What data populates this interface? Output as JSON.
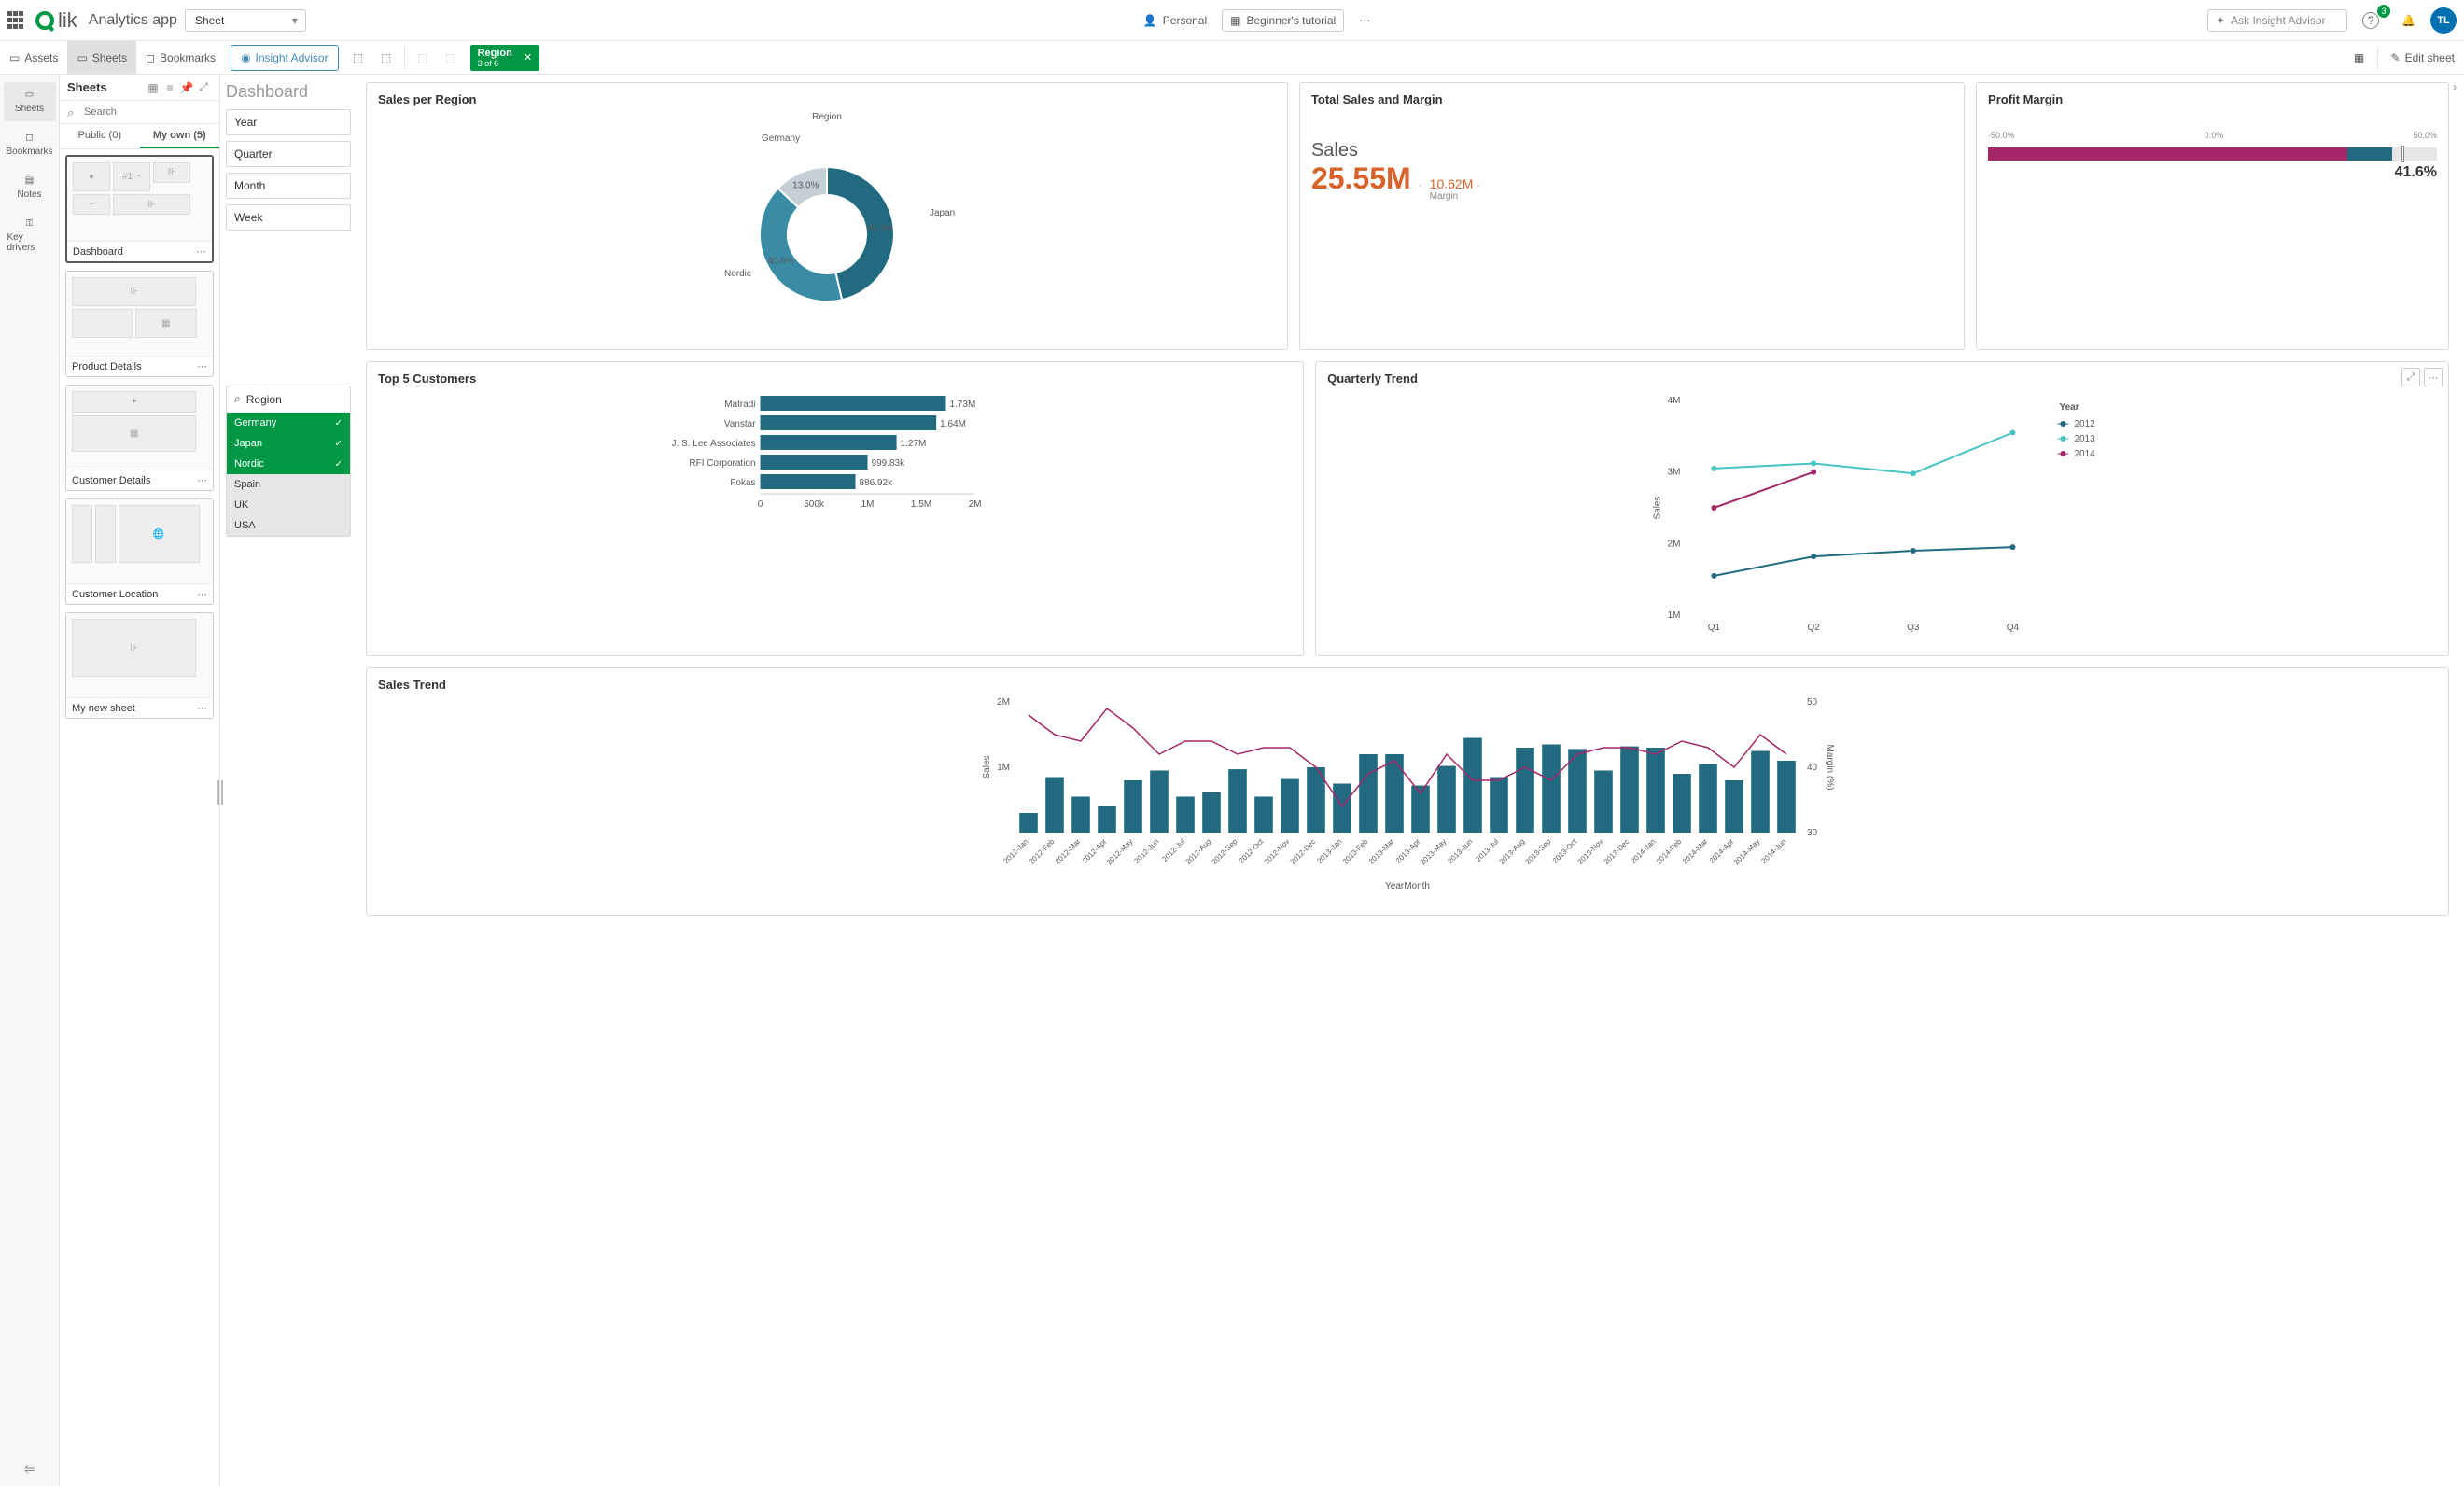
{
  "header": {
    "app_name": "Analytics app",
    "sheet_dropdown": "Sheet",
    "personal": "Personal",
    "tutorial": "Beginner's tutorial",
    "insight_placeholder": "Ask Insight Advisor",
    "help_badge": "3",
    "user_initials": "TL"
  },
  "toolbar": {
    "assets": "Assets",
    "sheets": "Sheets",
    "bookmarks": "Bookmarks",
    "insight": "Insight Advisor",
    "chip_label": "Region",
    "chip_sub": "3 of 6",
    "edit": "Edit sheet"
  },
  "rail": {
    "sheets": "Sheets",
    "bookmarks": "Bookmarks",
    "notes": "Notes",
    "drivers": "Key drivers"
  },
  "sheets_panel": {
    "title": "Sheets",
    "search_placeholder": "Search",
    "tab_public": "Public (0)",
    "tab_own": "My own (5)",
    "cards": [
      "Dashboard",
      "Product Details",
      "Customer Details",
      "Customer Location",
      "My new sheet"
    ]
  },
  "filters": {
    "page_title": "Dashboard",
    "year": "Year",
    "quarter": "Quarter",
    "month": "Month",
    "week": "Week",
    "region_label": "Region",
    "regions": [
      "Germany",
      "Japan",
      "Nordic",
      "Spain",
      "UK",
      "USA"
    ],
    "selected": [
      "Germany",
      "Japan",
      "Nordic"
    ]
  },
  "donut": {
    "title": "Sales per Region",
    "legend": "Region",
    "segments": [
      {
        "label": "Japan",
        "pct": 46.4,
        "color": "#226a80",
        "text_color": "#fff"
      },
      {
        "label": "Nordic",
        "pct": 40.6,
        "color": "#3a8ca6",
        "text_color": "#fff"
      },
      {
        "label": "Germany",
        "pct": 13.0,
        "color": "#c4cfd6",
        "text_color": "#595959"
      }
    ]
  },
  "kpi": {
    "title": "Total Sales and Margin",
    "label": "Sales",
    "value": "25.55M",
    "value_color": "#d9622b",
    "sub_value": "10.62M",
    "sub_label": "Margin",
    "sub_color": "#d9622b"
  },
  "bullet": {
    "title": "Profit Margin",
    "scale": [
      "-50.0%",
      "0.0%",
      "50.0%"
    ],
    "fill_color": "#a4276a",
    "fill_pct": 80,
    "tip_color": "#226a80",
    "tip_pct": 10,
    "marker_pct": 92,
    "marker_color": "#fff",
    "value": "41.6%"
  },
  "top5": {
    "title": "Top 5 Customers",
    "max": 2000000,
    "ticks": [
      "0",
      "500k",
      "1M",
      "1.5M",
      "2M"
    ],
    "color": "#226a80",
    "rows": [
      {
        "label": "Matradi",
        "value": 1730000,
        "text": "1.73M"
      },
      {
        "label": "Vanstar",
        "value": 1640000,
        "text": "1.64M"
      },
      {
        "label": "J. S. Lee Associates",
        "value": 1270000,
        "text": "1.27M"
      },
      {
        "label": "RFI Corporation",
        "value": 999830,
        "text": "999.83k"
      },
      {
        "label": "Fokas",
        "value": 886920,
        "text": "886.92k"
      }
    ]
  },
  "quarterly": {
    "title": "Quarterly Trend",
    "legend_title": "Year",
    "x_label": "",
    "y_label": "Sales",
    "x_ticks": [
      "Q1",
      "Q2",
      "Q3",
      "Q4"
    ],
    "y_ticks": [
      "1M",
      "2M",
      "3M",
      "4M"
    ],
    "y_min": 1,
    "y_max": 4,
    "series": [
      {
        "name": "2012",
        "color": "#226a80",
        "values": [
          1.55,
          1.82,
          1.9,
          1.95
        ]
      },
      {
        "name": "2013",
        "color": "#46c3c3",
        "values": [
          3.05,
          3.12,
          2.98,
          3.55
        ]
      },
      {
        "name": "2014",
        "color": "#a4276a",
        "values": [
          2.5,
          3.0,
          null,
          null
        ]
      }
    ]
  },
  "trend": {
    "title": "Sales Trend",
    "y_label": "Sales",
    "y2_label": "Margin (%)",
    "y_ticks": [
      "1M",
      "2M"
    ],
    "y2_ticks": [
      "30",
      "40",
      "50"
    ],
    "bar_color": "#226a80",
    "line_color": "#a4276a",
    "x_label": "YearMonth",
    "months": [
      "2012-Jan",
      "2012-Feb",
      "2012-Mar",
      "2012-Apr",
      "2012-May",
      "2012-Jun",
      "2012-Jul",
      "2012-Aug",
      "2012-Sep",
      "2012-Oct",
      "2012-Nov",
      "2012-Dec",
      "2013-Jan",
      "2013-Feb",
      "2013-Mar",
      "2013-Apr",
      "2013-May",
      "2013-Jun",
      "2013-Jul",
      "2013-Aug",
      "2013-Sep",
      "2013-Oct",
      "2013-Nov",
      "2013-Dec",
      "2014-Jan",
      "2014-Feb",
      "2014-Mar",
      "2014-Apr",
      "2014-May",
      "2014-Jun"
    ],
    "bars": [
      0.3,
      0.85,
      0.55,
      0.4,
      0.8,
      0.95,
      0.55,
      0.62,
      0.97,
      0.55,
      0.82,
      1.0,
      0.75,
      1.2,
      1.2,
      0.72,
      1.02,
      1.45,
      0.85,
      1.3,
      1.35,
      1.28,
      0.95,
      1.32,
      1.3,
      0.9,
      1.05,
      0.8,
      1.25,
      1.1
    ],
    "line": [
      48,
      45,
      44,
      49,
      46,
      42,
      44,
      44,
      42,
      43,
      43,
      40,
      34,
      39,
      41,
      36,
      42,
      38,
      38,
      40,
      38,
      42,
      43,
      43,
      42,
      44,
      43,
      40,
      45,
      42
    ]
  }
}
